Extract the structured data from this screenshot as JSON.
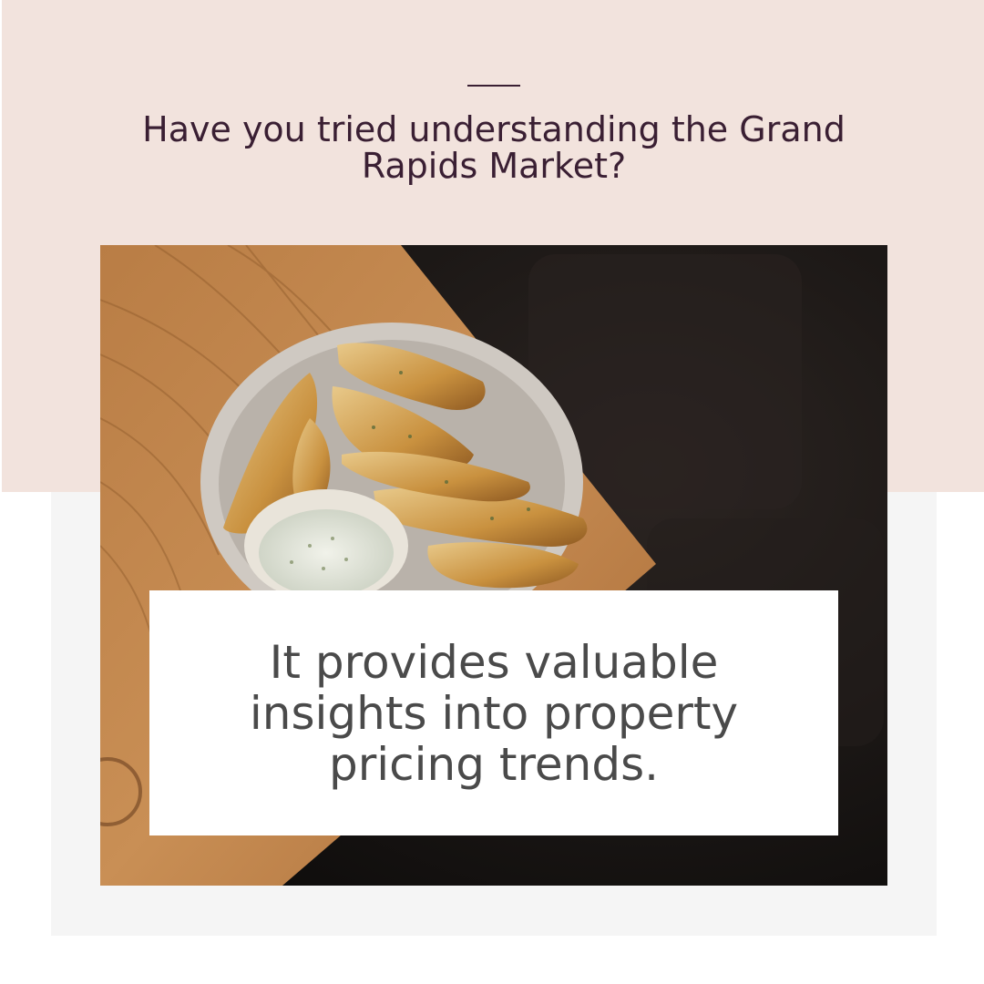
{
  "slide": {
    "heading": "Have you tried understanding the Grand Rapids Market?",
    "caption": "It provides valuable insights into property pricing trends."
  },
  "photo": {
    "subject": "potato wedges with dip on a plate",
    "icon": "food-photo"
  },
  "colors": {
    "top_band": "#f2e3dd",
    "bottom_band": "#f5f5f5",
    "heading_text": "#3a1f33",
    "caption_text": "#4a4a4a",
    "caption_box": "#ffffff"
  }
}
